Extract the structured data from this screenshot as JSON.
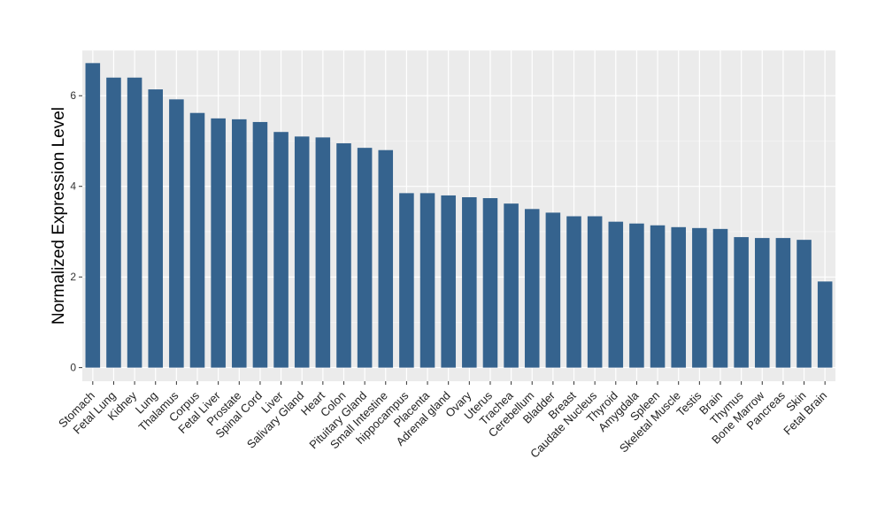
{
  "chart_data": {
    "type": "bar",
    "ylabel": "Normalized Expression Level",
    "xlabel": "",
    "ylim": [
      -0.3,
      7.0
    ],
    "yticks": [
      0,
      2,
      4,
      6
    ],
    "grid": true,
    "bar_color": "#35638e",
    "panel_color": "#ebebeb",
    "categories": [
      "Stomach",
      "Fetal Lung",
      "Kidney",
      "Lung",
      "Thalamus",
      "Corpus",
      "Fetal Liver",
      "Prostate",
      "Spinal Cord",
      "Liver",
      "Salivary Gland",
      "Heart",
      "Colon",
      "Pituitary Gland",
      "Small Intestine",
      "hippocampus",
      "Placenta",
      "Adrenal gland",
      "Ovary",
      "Uterus",
      "Trachea",
      "Cerebellum",
      "Bladder",
      "Breast",
      "Caudate Nucleus",
      "Thyroid",
      "Amygdala",
      "Spleen",
      "Skeletal Muscle",
      "Testis",
      "Brain",
      "Thymus",
      "Bone Marrow",
      "Pancreas",
      "Skin",
      "Fetal Brain"
    ],
    "values": [
      6.72,
      6.4,
      6.4,
      6.14,
      5.92,
      5.62,
      5.5,
      5.48,
      5.42,
      5.2,
      5.1,
      5.08,
      4.95,
      4.85,
      4.8,
      3.85,
      3.85,
      3.8,
      3.76,
      3.74,
      3.62,
      3.5,
      3.42,
      3.34,
      3.34,
      3.22,
      3.18,
      3.14,
      3.1,
      3.08,
      3.06,
      2.88,
      2.86,
      2.86,
      2.82,
      1.9
    ]
  }
}
